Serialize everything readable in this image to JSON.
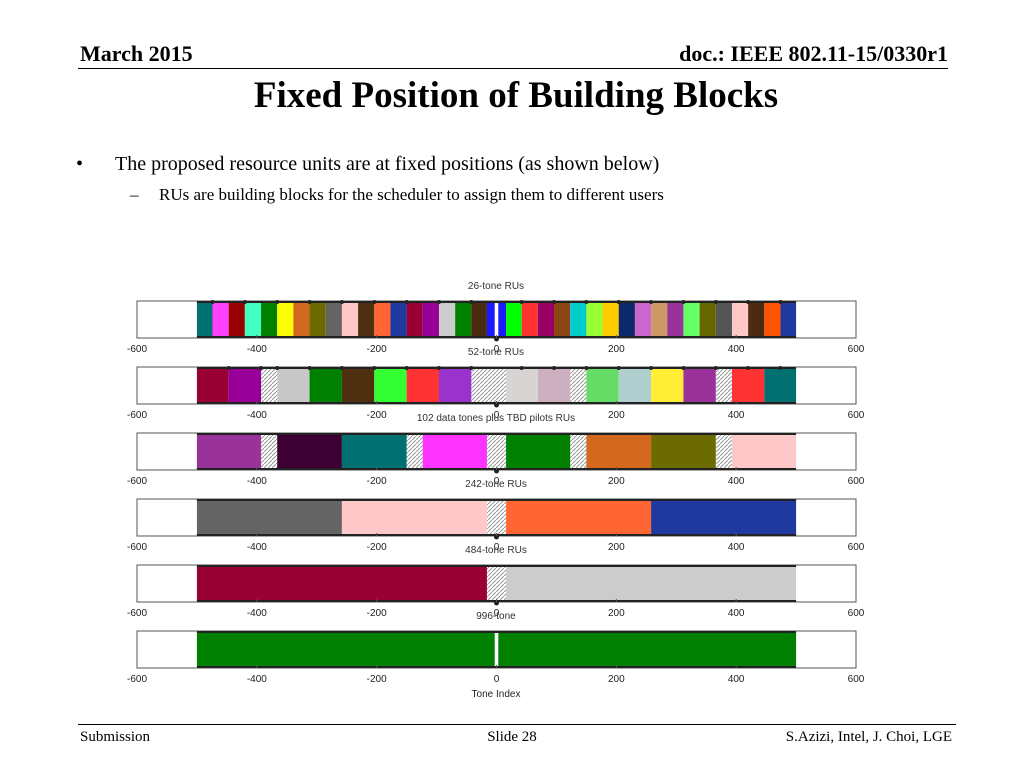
{
  "header": {
    "left": "March 2015",
    "right": "doc.: IEEE 802.11-15/0330r1"
  },
  "title": "Fixed Position of Building Blocks",
  "bullets": [
    {
      "marker": "•",
      "text": "The proposed resource units are at fixed positions (as shown below)"
    },
    {
      "marker": "–",
      "text": "RUs are building blocks for the scheduler to assign them to different users"
    }
  ],
  "chart_data": {
    "type": "bar",
    "orientation": "horizontal",
    "xlabel": "Tone Index",
    "xlim": [
      -600,
      600
    ],
    "xticks": [
      -600,
      -400,
      -200,
      0,
      200,
      400,
      600
    ],
    "xtick_labels": [
      "-600",
      "-400",
      "-200",
      "0",
      "200",
      "400",
      "600"
    ],
    "panels": [
      {
        "title": "26-tone RUs",
        "blocks": [
          {
            "start": -500,
            "end": -474,
            "color": "#007070"
          },
          {
            "start": -474,
            "end": -447,
            "color": "#ff40ff"
          },
          {
            "start": -447,
            "end": -420,
            "color": "#990000"
          },
          {
            "start": -420,
            "end": -393,
            "color": "#40ffc0"
          },
          {
            "start": -393,
            "end": -366,
            "color": "#008000"
          },
          {
            "start": -366,
            "end": -339,
            "color": "#ffff00"
          },
          {
            "start": -339,
            "end": -312,
            "color": "#d2691e"
          },
          {
            "start": -312,
            "end": -285,
            "color": "#6b6b00"
          },
          {
            "start": -285,
            "end": -258,
            "color": "#646464"
          },
          {
            "start": -258,
            "end": -231,
            "color": "#ffc8c8"
          },
          {
            "start": -231,
            "end": -204,
            "color": "#4e3010"
          },
          {
            "start": -204,
            "end": -177,
            "color": "#ff6633"
          },
          {
            "start": -177,
            "end": -150,
            "color": "#1e3aa0"
          },
          {
            "start": -150,
            "end": -123,
            "color": "#990033"
          },
          {
            "start": -123,
            "end": -96,
            "color": "#990099"
          },
          {
            "start": -96,
            "end": -69,
            "color": "#cccccc"
          },
          {
            "start": -69,
            "end": -42,
            "color": "#008000"
          },
          {
            "start": -42,
            "end": -16,
            "color": "#4b2c10"
          },
          {
            "start": -16,
            "end": -3,
            "color": "#1a1aff"
          },
          {
            "start": 3,
            "end": 16,
            "color": "#1a1aff"
          },
          {
            "start": 16,
            "end": 42,
            "color": "#00ff00"
          },
          {
            "start": 42,
            "end": 69,
            "color": "#ff3333"
          },
          {
            "start": 69,
            "end": 96,
            "color": "#990066"
          },
          {
            "start": 96,
            "end": 123,
            "color": "#8b4513"
          },
          {
            "start": 123,
            "end": 150,
            "color": "#00cccc"
          },
          {
            "start": 150,
            "end": 177,
            "color": "#99ff33"
          },
          {
            "start": 177,
            "end": 204,
            "color": "#ffcc00"
          },
          {
            "start": 204,
            "end": 231,
            "color": "#0a2a6a"
          },
          {
            "start": 231,
            "end": 258,
            "color": "#cc66cc"
          },
          {
            "start": 258,
            "end": 285,
            "color": "#cc9966"
          },
          {
            "start": 285,
            "end": 312,
            "color": "#993399"
          },
          {
            "start": 312,
            "end": 339,
            "color": "#66ff66"
          },
          {
            "start": 339,
            "end": 366,
            "color": "#666600"
          },
          {
            "start": 366,
            "end": 393,
            "color": "#555555"
          },
          {
            "start": 393,
            "end": 420,
            "color": "#ffc8c8"
          },
          {
            "start": 420,
            "end": 447,
            "color": "#4e2a10"
          },
          {
            "start": 447,
            "end": 474,
            "color": "#ff5500"
          },
          {
            "start": 474,
            "end": 500,
            "color": "#1e3aa0"
          }
        ],
        "gaps": [],
        "markers": [
          -474,
          -420,
          -366,
          -312,
          -258,
          -204,
          -150,
          -96,
          -42,
          42,
          96,
          150,
          204,
          258,
          312,
          366,
          420,
          474
        ]
      },
      {
        "title": "52-tone RUs",
        "blocks": [
          {
            "start": -500,
            "end": -447,
            "color": "#990033"
          },
          {
            "start": -447,
            "end": -393,
            "color": "#990099"
          },
          {
            "start": -366,
            "end": -312,
            "color": "#c8c8c8"
          },
          {
            "start": -312,
            "end": -258,
            "color": "#008000"
          },
          {
            "start": -258,
            "end": -204,
            "color": "#4e3010"
          },
          {
            "start": -204,
            "end": -150,
            "color": "#33ff33"
          },
          {
            "start": -150,
            "end": -96,
            "color": "#ff3333"
          },
          {
            "start": -96,
            "end": -42,
            "color": "#9933cc"
          },
          {
            "start": 16,
            "end": 69,
            "color": "#d8d4d4"
          },
          {
            "start": 69,
            "end": 123,
            "color": "#cdb0c0"
          },
          {
            "start": 150,
            "end": 204,
            "color": "#66dd66"
          },
          {
            "start": 204,
            "end": 258,
            "color": "#b0d0d0"
          },
          {
            "start": 258,
            "end": 312,
            "color": "#ffee33"
          },
          {
            "start": 312,
            "end": 366,
            "color": "#993399"
          },
          {
            "start": 393,
            "end": 447,
            "color": "#ff3333"
          },
          {
            "start": 447,
            "end": 500,
            "color": "#007070"
          }
        ],
        "gaps": [
          [
            -393,
            -366
          ],
          [
            -42,
            -16
          ],
          [
            -16,
            16
          ],
          [
            123,
            150
          ],
          [
            366,
            393
          ]
        ],
        "markers": [
          -447,
          -393,
          -366,
          -312,
          -258,
          -204,
          -150,
          -96,
          -42,
          42,
          96,
          150,
          204,
          258,
          312,
          366,
          420,
          474
        ]
      },
      {
        "title": "102 data tones plus TBD pilots RUs",
        "blocks": [
          {
            "start": -500,
            "end": -393,
            "color": "#993399"
          },
          {
            "start": -366,
            "end": -258,
            "color": "#3d0033"
          },
          {
            "start": -258,
            "end": -150,
            "color": "#007070"
          },
          {
            "start": -123,
            "end": -16,
            "color": "#ff33ff"
          },
          {
            "start": 16,
            "end": 123,
            "color": "#008000"
          },
          {
            "start": 150,
            "end": 258,
            "color": "#d2691e"
          },
          {
            "start": 258,
            "end": 366,
            "color": "#6b6b00"
          },
          {
            "start": 393,
            "end": 500,
            "color": "#ffc8c8"
          }
        ],
        "gaps": [
          [
            -393,
            -366
          ],
          [
            -150,
            -123
          ],
          [
            -16,
            16
          ],
          [
            123,
            150
          ],
          [
            366,
            393
          ]
        ],
        "markers": []
      },
      {
        "title": "242-tone RUs",
        "blocks": [
          {
            "start": -500,
            "end": -258,
            "color": "#646464"
          },
          {
            "start": -258,
            "end": -16,
            "color": "#ffc8c8"
          },
          {
            "start": 16,
            "end": 258,
            "color": "#ff6633"
          },
          {
            "start": 258,
            "end": 500,
            "color": "#1e3aa0"
          }
        ],
        "gaps": [
          [
            -16,
            16
          ]
        ],
        "markers": []
      },
      {
        "title": "484-tone RUs",
        "blocks": [
          {
            "start": -500,
            "end": -16,
            "color": "#990033"
          },
          {
            "start": 16,
            "end": 500,
            "color": "#cccccc"
          }
        ],
        "gaps": [
          [
            -16,
            16
          ]
        ],
        "markers": []
      },
      {
        "title": "996-tone",
        "blocks": [
          {
            "start": -500,
            "end": -3,
            "color": "#008000"
          },
          {
            "start": 3,
            "end": 500,
            "color": "#008000"
          }
        ],
        "gaps": [],
        "markers": []
      }
    ]
  },
  "footer": {
    "left": "Submission",
    "center": "Slide 28",
    "right": "S.Azizi, Intel, J. Choi, LGE"
  }
}
